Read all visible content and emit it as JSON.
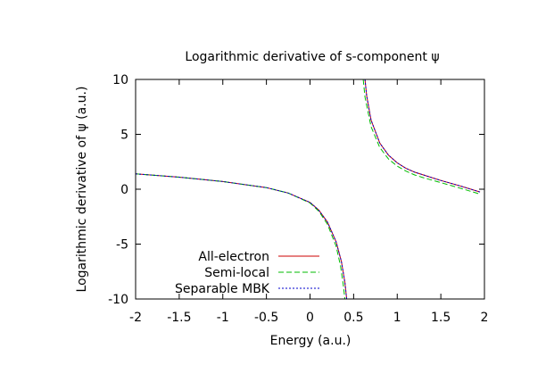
{
  "chart_data": {
    "type": "line",
    "title": "Logarithmic derivative of s-component ψ",
    "xlabel": "Energy (a.u.)",
    "ylabel": "Logarithmic derivative of ψ (a.u.)",
    "xlim": [
      -2,
      2
    ],
    "ylim": [
      -10,
      10
    ],
    "x_ticks": [
      -2,
      -1.5,
      -1,
      -0.5,
      0,
      0.5,
      1,
      1.5,
      2
    ],
    "x_tick_labels": [
      "-2",
      "-1.5",
      "-1",
      "-0.5",
      "0",
      "0.5",
      "1",
      "1.5",
      "2"
    ],
    "y_ticks": [
      -10,
      -5,
      0,
      5,
      10
    ],
    "y_tick_labels": [
      "-10",
      "-5",
      "0",
      "5",
      "10"
    ],
    "grid": false,
    "legend_position": "bottom-left",
    "series": [
      {
        "name": "All-electron",
        "color": "#cc0000",
        "dash": "solid",
        "segments": [
          {
            "x": [
              -2,
              -1.5,
              -1,
              -0.5,
              -0.25,
              0,
              0.1,
              0.2,
              0.3,
              0.36,
              0.4,
              0.42
            ],
            "y": [
              1.4,
              1.1,
              0.7,
              0.15,
              -0.35,
              -1.2,
              -1.9,
              -3.0,
              -4.8,
              -6.6,
              -8.5,
              -10
            ]
          },
          {
            "x": [
              0.63,
              0.65,
              0.7,
              0.8,
              0.9,
              1.0,
              1.1,
              1.2,
              1.3,
              1.5,
              1.7,
              1.95
            ],
            "y": [
              10,
              8.5,
              6.3,
              4.2,
              3.1,
              2.4,
              1.9,
              1.55,
              1.3,
              0.8,
              0.35,
              -0.25
            ]
          }
        ]
      },
      {
        "name": "Semi-local",
        "color": "#00bb00",
        "dash": "dash",
        "segments": [
          {
            "x": [
              -2,
              -1.5,
              -1,
              -0.5,
              -0.25,
              0,
              0.1,
              0.2,
              0.3,
              0.35,
              0.38,
              0.4
            ],
            "y": [
              1.4,
              1.1,
              0.7,
              0.15,
              -0.35,
              -1.25,
              -2.0,
              -3.2,
              -5.2,
              -7.0,
              -8.6,
              -10
            ]
          },
          {
            "x": [
              0.61,
              0.63,
              0.7,
              0.8,
              0.9,
              1.0,
              1.1,
              1.2,
              1.3,
              1.5,
              1.7,
              1.95
            ],
            "y": [
              10,
              8.4,
              5.7,
              3.8,
              2.75,
              2.1,
              1.65,
              1.3,
              1.05,
              0.6,
              0.15,
              -0.45
            ]
          }
        ]
      },
      {
        "name": "Separable MBK",
        "color": "#0000cc",
        "dash": "dot",
        "segments": [
          {
            "x": [
              -2,
              -1.5,
              -1,
              -0.5,
              -0.25,
              0,
              0.1,
              0.2,
              0.3,
              0.36,
              0.4,
              0.42
            ],
            "y": [
              1.4,
              1.1,
              0.7,
              0.15,
              -0.35,
              -1.2,
              -1.9,
              -3.0,
              -4.8,
              -6.6,
              -8.5,
              -10
            ]
          },
          {
            "x": [
              0.63,
              0.65,
              0.7,
              0.8,
              0.9,
              1.0,
              1.1,
              1.2,
              1.3,
              1.5,
              1.7,
              1.95
            ],
            "y": [
              10,
              8.5,
              6.3,
              4.2,
              3.1,
              2.4,
              1.9,
              1.55,
              1.3,
              0.8,
              0.35,
              -0.25
            ]
          }
        ]
      }
    ]
  }
}
